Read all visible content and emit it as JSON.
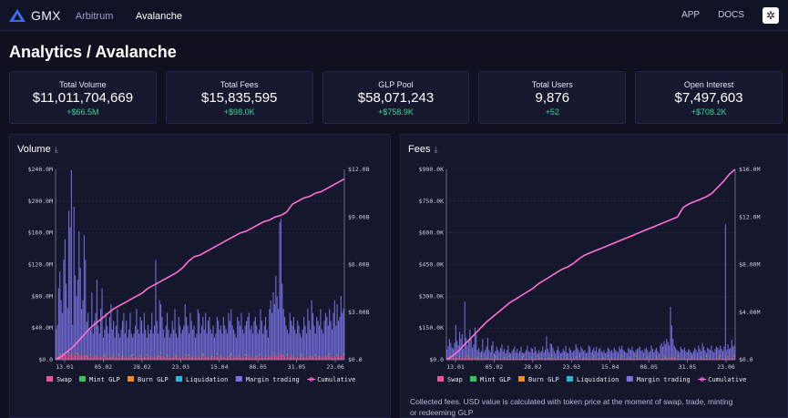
{
  "app": {
    "brand": "GMX",
    "nav": [
      "Arbitrum",
      "Avalanche"
    ],
    "right_links": [
      "APP",
      "DOCS"
    ],
    "theme_icon": "gear-icon"
  },
  "page": {
    "title": "Analytics / Avalanche"
  },
  "stats": [
    {
      "label": "Total Volume",
      "value": "$11,011,704,669",
      "delta": "+$66.5M"
    },
    {
      "label": "Total Fees",
      "value": "$15,835,595",
      "delta": "+$98.0K"
    },
    {
      "label": "GLP Pool",
      "value": "$58,071,243",
      "delta": "+$758.9K"
    },
    {
      "label": "Total Users",
      "value": "9,876",
      "delta": "+52"
    },
    {
      "label": "Open Interest",
      "value": "$7,497,603",
      "delta": "+$708.2K"
    }
  ],
  "colors": {
    "swap": "#e6569c",
    "mint": "#3cc35a",
    "burn": "#f08a22",
    "liq": "#25b8d6",
    "margin": "#7b74e8",
    "cumulative": "#ff6fd4",
    "green": "#3fd38f"
  },
  "fees_note": "Collected fees. USD value is calculated with token price at the moment of swap, trade, minting or redeeming GLP",
  "chart_data": [
    {
      "type": "bar",
      "title": "Volume",
      "x_ticks": [
        "13.01",
        "05.02",
        "28.02",
        "23.03",
        "15.04",
        "08.05",
        "31.05",
        "23.06"
      ],
      "y_left_ticks": [
        "$0.0",
        "$40.0M",
        "$80.0M",
        "$120.0M",
        "$160.0M",
        "$200.0M",
        "$240.0M"
      ],
      "y_right_ticks": [
        "$0.0",
        "$3.00B",
        "$6.00B",
        "$9.00B",
        "$12.0B"
      ],
      "ylim_left": [
        0,
        240
      ],
      "ylim_right": [
        0,
        12
      ],
      "legend": [
        "Swap",
        "Mint GLP",
        "Burn GLP",
        "Liquidation",
        "Margin trading",
        "Cumulative"
      ],
      "margin_values": [
        35,
        40,
        85,
        105,
        70,
        55,
        120,
        145,
        90,
        60,
        180,
        160,
        230,
        40,
        185,
        100,
        75,
        95,
        155,
        110,
        60,
        70,
        150,
        120,
        45,
        55,
        35,
        35,
        80,
        30,
        45,
        55,
        95,
        40,
        30,
        60,
        85,
        25,
        35,
        55,
        40,
        30,
        50,
        65,
        35,
        45,
        25,
        40,
        60,
        30,
        25,
        35,
        45,
        55,
        30,
        45,
        25,
        35,
        55,
        30,
        25,
        30,
        40,
        60,
        35,
        30,
        50,
        45,
        30,
        55,
        35,
        25,
        40,
        30,
        35,
        55,
        30,
        40,
        120,
        45,
        30,
        70,
        65,
        50,
        35,
        25,
        40,
        55,
        35,
        25,
        30,
        45,
        35,
        60,
        30,
        25,
        50,
        40,
        30,
        35,
        40,
        65,
        50,
        40,
        30,
        55,
        45,
        35,
        40,
        25,
        30,
        60,
        55,
        30,
        40,
        50,
        35,
        55,
        30,
        45,
        50,
        35,
        30,
        40,
        25,
        30,
        50,
        45,
        35,
        40,
        30,
        50,
        40,
        35,
        30,
        55,
        45,
        60,
        40,
        35,
        30,
        25,
        50,
        45,
        40,
        55,
        35,
        30,
        40,
        45,
        50,
        55,
        35,
        40,
        30,
        45,
        50,
        40,
        30,
        35,
        60,
        45,
        30,
        40,
        50,
        35,
        25,
        60,
        70,
        55,
        80,
        65,
        100,
        75,
        60,
        165,
        170,
        90,
        60,
        50,
        40,
        35,
        30,
        55,
        45,
        40,
        50,
        35,
        30,
        45,
        40,
        30,
        25,
        35,
        50,
        40,
        30,
        60,
        45,
        35,
        70,
        55,
        40,
        30,
        50,
        45,
        40,
        60,
        35,
        30,
        45,
        55,
        50,
        40,
        60,
        45,
        35,
        55,
        70,
        40,
        65,
        45,
        50,
        75,
        55,
        60
      ],
      "swap_values": [
        3,
        4,
        5,
        6,
        5,
        4,
        6,
        7,
        6,
        5,
        8,
        7,
        9,
        4,
        8,
        6,
        5,
        6,
        7,
        6,
        4,
        5,
        7,
        6,
        3,
        4,
        3,
        3,
        5,
        3,
        4,
        4,
        6,
        3,
        3,
        4,
        5,
        3,
        3,
        4,
        3,
        3,
        4,
        5,
        3,
        4,
        3,
        3,
        4,
        3,
        3,
        3,
        4,
        4,
        3,
        4,
        3,
        3,
        4,
        3,
        3,
        3,
        3,
        4,
        3,
        3,
        4,
        4,
        3,
        4,
        3,
        3,
        4,
        3,
        3,
        4,
        3,
        3,
        6,
        4,
        3,
        5,
        5,
        4,
        3,
        3,
        3,
        4,
        3,
        3,
        3,
        4,
        3,
        4,
        3,
        3,
        4,
        3,
        3,
        3,
        3,
        5,
        4,
        3,
        3,
        4,
        4,
        3,
        3,
        3,
        3,
        4,
        4,
        3,
        3,
        4,
        3,
        4,
        3,
        4,
        4,
        3,
        3,
        3,
        3,
        3,
        4,
        4,
        3,
        3,
        3,
        4,
        3,
        3,
        3,
        4,
        4,
        4,
        3,
        3,
        3,
        3,
        4,
        4,
        3,
        4,
        3,
        3,
        3,
        4,
        4,
        4,
        3,
        3,
        3,
        4,
        4,
        3,
        3,
        3,
        4,
        4,
        3,
        3,
        4,
        3,
        3,
        4,
        5,
        4,
        5,
        5,
        6,
        5,
        4,
        8,
        8,
        6,
        4,
        4,
        3,
        3,
        3,
        4,
        4,
        3,
        4,
        3,
        3,
        4,
        3,
        3,
        3,
        3,
        4,
        3,
        3,
        4,
        4,
        3,
        5,
        4,
        3,
        3,
        4,
        4,
        3,
        4,
        3,
        3,
        4,
        4,
        4,
        3,
        4,
        4,
        3,
        4,
        5,
        3,
        5,
        4,
        4,
        5,
        4,
        4
      ],
      "cumulative_line": [
        0,
        0.2,
        0.5,
        0.8,
        1.2,
        1.6,
        2.0,
        2.3,
        2.6,
        2.9,
        3.2,
        3.4,
        3.6,
        3.8,
        4.0,
        4.2,
        4.5,
        4.7,
        4.9,
        5.1,
        5.3,
        5.5,
        5.8,
        6.2,
        6.5,
        6.6,
        6.8,
        7.0,
        7.2,
        7.4,
        7.6,
        7.8,
        8.0,
        8.1,
        8.3,
        8.5,
        8.7,
        8.8,
        9.0,
        9.1,
        9.3,
        9.8,
        10.0,
        10.2,
        10.3,
        10.5,
        10.6,
        10.8,
        11.0,
        11.2,
        11.4
      ]
    },
    {
      "type": "bar",
      "title": "Fees",
      "x_ticks": [
        "13.01",
        "05.02",
        "28.02",
        "23.03",
        "15.04",
        "08.05",
        "31.05",
        "23.06"
      ],
      "y_left_ticks": [
        "$0.0",
        "$150.0K",
        "$300.0K",
        "$450.0K",
        "$600.0K",
        "$750.0K",
        "$900.0K"
      ],
      "y_right_ticks": [
        "$0.0",
        "$4.00M",
        "$8.00M",
        "$12.0M",
        "$16.0M"
      ],
      "ylim_left": [
        0,
        900
      ],
      "ylim_right": [
        0,
        16
      ],
      "legend": [
        "Swap",
        "Mint GLP",
        "Burn GLP",
        "Liquidation",
        "Margin trading",
        "Cumulative"
      ],
      "margin_values": [
        40,
        55,
        85,
        70,
        50,
        45,
        70,
        150,
        80,
        60,
        120,
        90,
        110,
        45,
        260,
        95,
        60,
        85,
        130,
        90,
        50,
        65,
        140,
        110,
        40,
        50,
        30,
        35,
        90,
        30,
        40,
        55,
        95,
        40,
        30,
        60,
        80,
        25,
        35,
        55,
        40,
        30,
        50,
        65,
        35,
        45,
        25,
        40,
        60,
        30,
        25,
        35,
        45,
        55,
        30,
        45,
        25,
        35,
        55,
        30,
        25,
        30,
        40,
        60,
        35,
        30,
        50,
        45,
        30,
        55,
        35,
        25,
        40,
        30,
        35,
        55,
        30,
        40,
        100,
        45,
        30,
        70,
        65,
        50,
        35,
        25,
        40,
        55,
        35,
        25,
        30,
        45,
        35,
        60,
        30,
        25,
        50,
        40,
        30,
        35,
        40,
        65,
        50,
        40,
        30,
        55,
        45,
        35,
        40,
        25,
        30,
        60,
        55,
        30,
        40,
        50,
        35,
        55,
        30,
        45,
        50,
        35,
        30,
        40,
        25,
        30,
        50,
        45,
        35,
        40,
        30,
        50,
        40,
        35,
        30,
        55,
        45,
        60,
        40,
        35,
        30,
        25,
        50,
        45,
        40,
        55,
        35,
        30,
        40,
        45,
        50,
        55,
        35,
        40,
        30,
        45,
        50,
        40,
        30,
        35,
        60,
        45,
        30,
        40,
        50,
        35,
        25,
        60,
        70,
        55,
        80,
        65,
        90,
        75,
        60,
        235,
        150,
        90,
        60,
        50,
        40,
        35,
        30,
        55,
        45,
        40,
        50,
        35,
        30,
        45,
        40,
        30,
        25,
        35,
        50,
        40,
        30,
        60,
        45,
        35,
        70,
        55,
        40,
        30,
        50,
        45,
        40,
        60,
        35,
        30,
        45,
        55,
        50,
        40,
        60,
        45,
        35,
        55,
        620,
        40,
        65,
        45,
        50,
        85,
        55,
        60
      ],
      "swap_values": [
        8,
        10,
        12,
        10,
        8,
        7,
        10,
        14,
        9,
        8,
        12,
        10,
        11,
        7,
        16,
        10,
        8,
        10,
        12,
        10,
        7,
        8,
        12,
        10,
        6,
        7,
        5,
        6,
        9,
        5,
        6,
        7,
        9,
        6,
        5,
        7,
        8,
        5,
        6,
        7,
        6,
        5,
        7,
        8,
        5,
        6,
        5,
        6,
        7,
        5,
        5,
        6,
        6,
        7,
        5,
        6,
        5,
        6,
        7,
        5,
        5,
        5,
        6,
        7,
        5,
        5,
        7,
        6,
        5,
        7,
        6,
        5,
        6,
        5,
        6,
        7,
        5,
        6,
        10,
        6,
        5,
        8,
        8,
        7,
        6,
        5,
        6,
        7,
        6,
        5,
        5,
        6,
        6,
        7,
        5,
        5,
        7,
        6,
        5,
        6,
        6,
        8,
        7,
        6,
        5,
        7,
        6,
        6,
        6,
        5,
        5,
        7,
        7,
        5,
        6,
        7,
        6,
        7,
        5,
        6,
        7,
        6,
        5,
        6,
        5,
        5,
        7,
        6,
        6,
        6,
        5,
        7,
        6,
        6,
        5,
        7,
        6,
        7,
        6,
        6,
        5,
        5,
        7,
        6,
        6,
        7,
        6,
        5,
        6,
        6,
        7,
        7,
        6,
        6,
        5,
        6,
        7,
        6,
        5,
        6,
        7,
        6,
        5,
        6,
        7,
        6,
        5,
        7,
        8,
        7,
        8,
        8,
        9,
        8,
        7,
        14,
        12,
        9,
        7,
        7,
        6,
        6,
        5,
        7,
        6,
        6,
        7,
        6,
        5,
        6,
        6,
        5,
        5,
        6,
        7,
        6,
        5,
        7,
        6,
        6,
        8,
        7,
        6,
        5,
        7,
        6,
        6,
        7,
        6,
        5,
        6,
        7,
        7,
        6,
        7,
        6,
        6,
        7,
        20,
        6,
        8,
        6,
        7,
        9,
        7,
        7
      ],
      "cumulative_line": [
        0,
        0.3,
        0.7,
        1.2,
        1.7,
        2.2,
        2.7,
        3.2,
        3.6,
        4.0,
        4.4,
        4.8,
        5.1,
        5.4,
        5.7,
        6.0,
        6.4,
        6.7,
        7.0,
        7.3,
        7.6,
        7.8,
        8.1,
        8.5,
        8.8,
        9.0,
        9.2,
        9.4,
        9.6,
        9.8,
        10.0,
        10.2,
        10.4,
        10.6,
        10.8,
        11.0,
        11.2,
        11.4,
        11.6,
        11.8,
        12.0,
        12.8,
        13.1,
        13.3,
        13.5,
        13.7,
        14.0,
        14.5,
        15.0,
        15.6,
        16.0
      ]
    }
  ]
}
